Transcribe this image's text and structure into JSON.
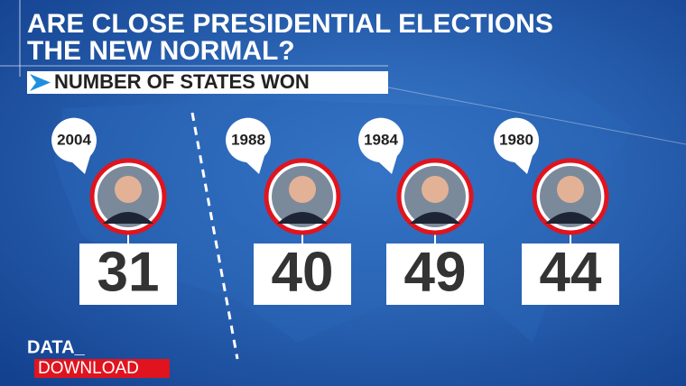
{
  "header": {
    "title_lines": [
      "ARE CLOSE PRESIDENTIAL ELECTIONS",
      "THE NEW NORMAL?"
    ],
    "subtitle": "NUMBER OF STATES WON"
  },
  "items": [
    {
      "year": "2004",
      "states": 31
    },
    {
      "year": "1988",
      "states": 40
    },
    {
      "year": "1984",
      "states": 49
    },
    {
      "year": "1980",
      "states": 44
    }
  ],
  "branding": {
    "line1": "DATA_",
    "line2": "DOWNLOAD"
  }
}
